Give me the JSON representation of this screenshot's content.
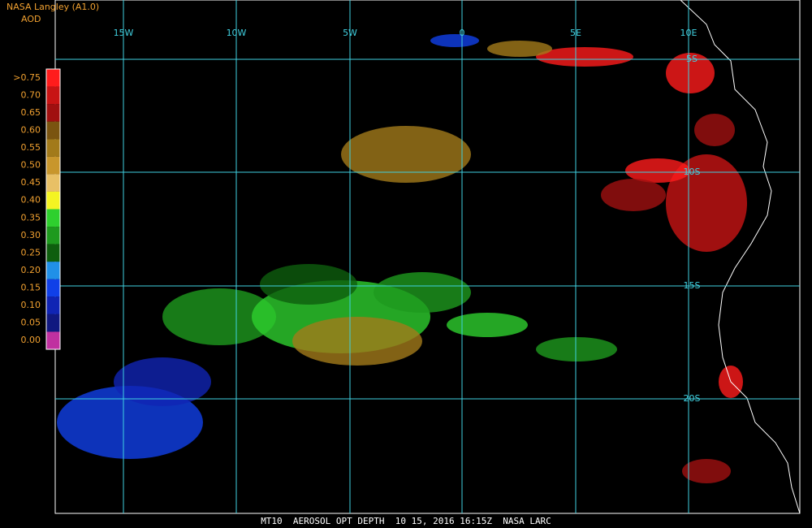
{
  "header": {
    "title": "NASA Langley (A1.0)",
    "subtitle": "AOD"
  },
  "legend": [
    {
      "label": ">0.75",
      "color": "#ff1c1c"
    },
    {
      "label": "0.70",
      "color": "#c81414"
    },
    {
      "label": "0.65",
      "color": "#a01010"
    },
    {
      "label": "0.60",
      "color": "#7a5410"
    },
    {
      "label": "0.55",
      "color": "#a27a1a"
    },
    {
      "label": "0.50",
      "color": "#c8962c"
    },
    {
      "label": "0.45",
      "color": "#e8c066"
    },
    {
      "label": "0.40",
      "color": "#f4f422"
    },
    {
      "label": "0.35",
      "color": "#2ed02e"
    },
    {
      "label": "0.30",
      "color": "#1e9a1e"
    },
    {
      "label": "0.25",
      "color": "#0e5e0e"
    },
    {
      "label": "0.20",
      "color": "#2090e8"
    },
    {
      "label": "0.15",
      "color": "#1040e8"
    },
    {
      "label": "0.10",
      "color": "#1024b4"
    },
    {
      "label": "0.05",
      "color": "#101880"
    },
    {
      "label": "0.00",
      "color": "#c030a0"
    }
  ],
  "longitudes": [
    "15W",
    "10W",
    "5W",
    "0",
    "5E",
    "10E"
  ],
  "latitudes": [
    "5S",
    "10S",
    "15S",
    "20S"
  ],
  "footer": "MT10  AEROSOL OPT DEPTH  10 15, 2016 16:15Z  NASA LARC"
}
